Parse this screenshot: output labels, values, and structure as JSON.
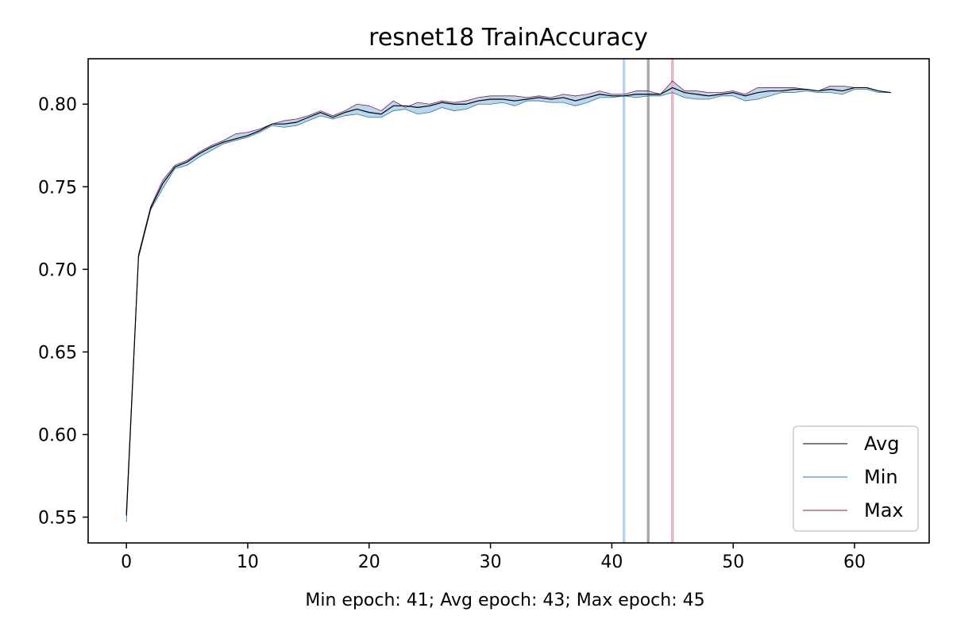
{
  "chart_data": {
    "type": "line",
    "title": "resnet18 TrainAccuracy",
    "xlabel": "Min epoch: 41; Avg epoch: 43; Max epoch: 45",
    "ylabel": "",
    "xlim": [
      -3.15,
      66.15
    ],
    "ylim": [
      0.5344,
      0.8275
    ],
    "xticks": [
      0,
      10,
      20,
      30,
      40,
      50,
      60
    ],
    "xtick_labels": [
      "0",
      "10",
      "20",
      "30",
      "40",
      "50",
      "60"
    ],
    "yticks": [
      0.55,
      0.6,
      0.65,
      0.7,
      0.75,
      0.8
    ],
    "ytick_labels": [
      "0.55",
      "0.60",
      "0.65",
      "0.70",
      "0.75",
      "0.80"
    ],
    "grid": false,
    "legend_position": "bottom-right",
    "x": [
      0,
      1,
      2,
      3,
      4,
      5,
      6,
      7,
      8,
      9,
      10,
      11,
      12,
      13,
      14,
      15,
      16,
      17,
      18,
      19,
      20,
      21,
      22,
      23,
      24,
      25,
      26,
      27,
      28,
      29,
      30,
      31,
      32,
      33,
      34,
      35,
      36,
      37,
      38,
      39,
      40,
      41,
      42,
      43,
      44,
      45,
      46,
      47,
      48,
      49,
      50,
      51,
      52,
      53,
      54,
      55,
      56,
      57,
      58,
      59,
      60,
      61,
      62,
      63
    ],
    "series": [
      {
        "name": "Avg",
        "color": "#000000",
        "values": [
          0.551,
          0.708,
          0.737,
          0.752,
          0.762,
          0.765,
          0.77,
          0.774,
          0.777,
          0.779,
          0.781,
          0.784,
          0.788,
          0.788,
          0.789,
          0.792,
          0.795,
          0.792,
          0.795,
          0.797,
          0.795,
          0.794,
          0.799,
          0.799,
          0.798,
          0.799,
          0.801,
          0.8,
          0.8,
          0.802,
          0.803,
          0.803,
          0.802,
          0.803,
          0.804,
          0.803,
          0.804,
          0.802,
          0.804,
          0.806,
          0.805,
          0.805,
          0.806,
          0.806,
          0.806,
          0.81,
          0.807,
          0.806,
          0.805,
          0.806,
          0.807,
          0.805,
          0.807,
          0.808,
          0.808,
          0.809,
          0.809,
          0.808,
          0.809,
          0.808,
          0.81,
          0.81,
          0.808,
          0.807
        ]
      },
      {
        "name": "Min",
        "color": "#1f77b4",
        "values": [
          0.547,
          0.707,
          0.736,
          0.749,
          0.761,
          0.763,
          0.768,
          0.772,
          0.776,
          0.778,
          0.78,
          0.783,
          0.787,
          0.786,
          0.787,
          0.79,
          0.793,
          0.791,
          0.793,
          0.794,
          0.792,
          0.792,
          0.796,
          0.797,
          0.794,
          0.795,
          0.798,
          0.796,
          0.797,
          0.8,
          0.8,
          0.801,
          0.799,
          0.802,
          0.802,
          0.801,
          0.801,
          0.799,
          0.801,
          0.804,
          0.804,
          0.805,
          0.804,
          0.805,
          0.805,
          0.807,
          0.804,
          0.803,
          0.803,
          0.805,
          0.805,
          0.802,
          0.803,
          0.805,
          0.807,
          0.807,
          0.808,
          0.807,
          0.807,
          0.806,
          0.809,
          0.809,
          0.807,
          0.807
        ]
      },
      {
        "name": "Max",
        "color": "#8b1a4a",
        "values": [
          0.553,
          0.709,
          0.738,
          0.754,
          0.763,
          0.766,
          0.771,
          0.775,
          0.778,
          0.782,
          0.783,
          0.785,
          0.788,
          0.79,
          0.791,
          0.793,
          0.796,
          0.793,
          0.796,
          0.8,
          0.799,
          0.796,
          0.802,
          0.798,
          0.801,
          0.8,
          0.802,
          0.801,
          0.802,
          0.804,
          0.805,
          0.805,
          0.805,
          0.804,
          0.805,
          0.804,
          0.806,
          0.805,
          0.806,
          0.808,
          0.806,
          0.806,
          0.808,
          0.808,
          0.806,
          0.814,
          0.808,
          0.808,
          0.807,
          0.807,
          0.808,
          0.806,
          0.81,
          0.81,
          0.81,
          0.81,
          0.809,
          0.808,
          0.811,
          0.811,
          0.81,
          0.81,
          0.808,
          0.807
        ]
      }
    ],
    "band_color": "#a8c8e6",
    "markers": [
      {
        "label": "Min epoch",
        "x": 41,
        "color": "#b8d2ea"
      },
      {
        "label": "Avg epoch",
        "x": 43,
        "color": "#aaaaaa"
      },
      {
        "label": "Max epoch",
        "x": 45,
        "color": "#e6b3c3"
      }
    ]
  }
}
